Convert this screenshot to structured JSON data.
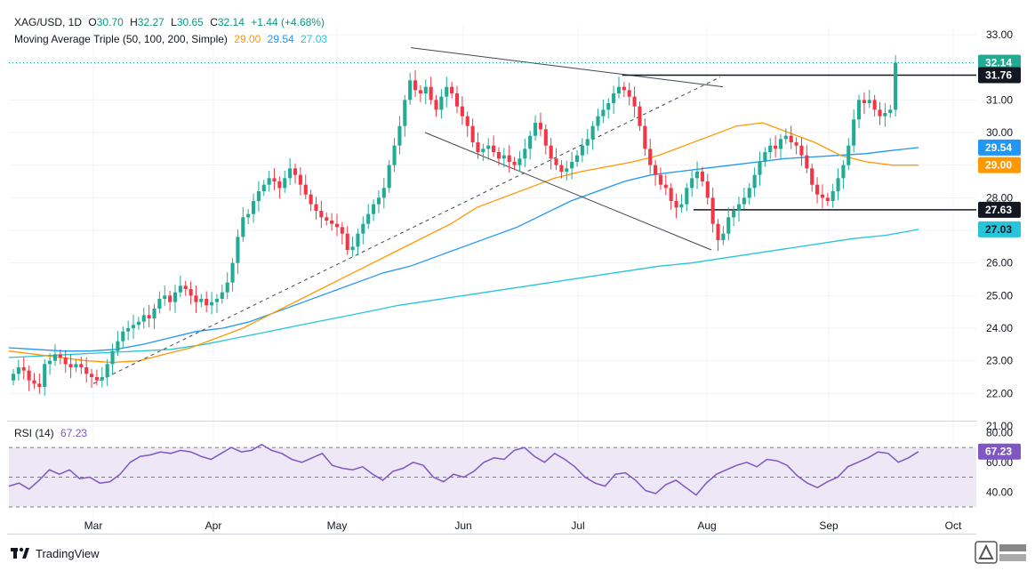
{
  "header": {
    "symbol": "XAG/USD, 1D",
    "open_label": "O",
    "open": "30.70",
    "high_label": "H",
    "high": "32.27",
    "low_label": "L",
    "low": "30.65",
    "close_label": "C",
    "close": "32.14",
    "change": "+1.44 (+4.68%)",
    "ma_title": "Moving Average Triple (50, 100, 200, Simple)",
    "ma50": "29.00",
    "ma100": "29.54",
    "ma200": "27.03"
  },
  "rsi": {
    "label": "RSI (14)",
    "value": "67.23",
    "ticks": [
      "80.00",
      "60.00",
      "40.00"
    ]
  },
  "colors": {
    "up": "#22ab94",
    "down": "#f23645",
    "ma50": "#ff9800",
    "ma100": "#2196f3",
    "ma200": "#26c6da",
    "rsi_line": "#7e57c2",
    "rsi_band": "#ede7f6",
    "price_line": "#22ab94",
    "label_dark": "#131722"
  },
  "price_axis": [
    "33.00",
    "32.00",
    "31.00",
    "30.00",
    "29.00",
    "28.00",
    "27.00",
    "26.00",
    "25.00",
    "24.00",
    "23.00",
    "22.00",
    "21.00"
  ],
  "axis_tags": [
    {
      "value": "32.14",
      "color": "#22ab94",
      "text_color": "#ffffff"
    },
    {
      "value": "31.76",
      "color": "#131722",
      "text_color": "#ffffff"
    },
    {
      "value": "29.54",
      "color": "#2196f3",
      "text_color": "#ffffff"
    },
    {
      "value": "29.00",
      "color": "#ff9800",
      "text_color": "#ffffff"
    },
    {
      "value": "27.63",
      "color": "#131722",
      "text_color": "#ffffff"
    },
    {
      "value": "27.03",
      "color": "#26c6da",
      "text_color": "#131722"
    },
    {
      "value": "67.23",
      "color": "#7e57c2",
      "text_color": "#ffffff"
    }
  ],
  "time_axis": [
    "Mar",
    "Apr",
    "May",
    "Jun",
    "Jul",
    "Aug",
    "Sep",
    "Oct"
  ],
  "footer": {
    "brand": "TradingView"
  },
  "chart_data": {
    "type": "candlestick",
    "title": "XAG/USD, 1D",
    "ylim": [
      21,
      33
    ],
    "series_close": [
      22.6,
      22.8,
      22.7,
      22.4,
      22.3,
      22.2,
      22.9,
      23.0,
      23.2,
      23.1,
      22.9,
      22.8,
      22.9,
      22.8,
      22.6,
      22.5,
      22.4,
      22.5,
      22.9,
      23.3,
      23.6,
      23.9,
      24.0,
      24.1,
      24.2,
      24.4,
      24.3,
      24.6,
      24.9,
      25.0,
      24.8,
      25.1,
      25.3,
      25.2,
      25.0,
      24.8,
      24.9,
      24.7,
      24.8,
      24.9,
      25.1,
      25.4,
      26.0,
      26.8,
      27.4,
      27.5,
      27.9,
      28.2,
      28.4,
      28.6,
      28.5,
      28.3,
      28.6,
      28.9,
      28.7,
      28.4,
      28.1,
      27.8,
      27.6,
      27.4,
      27.3,
      27.2,
      27.1,
      26.9,
      26.4,
      26.5,
      26.9,
      27.2,
      27.5,
      27.8,
      28.0,
      28.3,
      29.0,
      29.6,
      30.2,
      31.0,
      31.6,
      31.3,
      31.2,
      31.4,
      31.0,
      30.7,
      31.1,
      31.4,
      31.2,
      30.8,
      30.5,
      30.2,
      29.7,
      29.4,
      29.5,
      29.6,
      29.4,
      29.2,
      29.3,
      29.1,
      29.0,
      29.2,
      29.5,
      29.9,
      30.3,
      30.1,
      29.6,
      29.2,
      29.0,
      28.8,
      28.9,
      29.1,
      29.3,
      29.6,
      29.8,
      30.2,
      30.5,
      30.7,
      30.9,
      31.2,
      31.4,
      31.3,
      31.1,
      30.8,
      30.2,
      29.5,
      29.0,
      28.7,
      28.4,
      28.3,
      27.9,
      27.7,
      27.8,
      28.3,
      28.6,
      28.8,
      28.5,
      28.0,
      27.2,
      26.7,
      26.9,
      27.4,
      27.6,
      27.8,
      28.0,
      28.3,
      28.7,
      29.1,
      29.4,
      29.6,
      29.5,
      29.8,
      29.9,
      29.7,
      29.6,
      29.3,
      28.9,
      28.4,
      28.1,
      28.0,
      27.9,
      28.2,
      28.6,
      29.0,
      29.6,
      30.4,
      31.0,
      30.9,
      31.0,
      30.7,
      30.5,
      30.6,
      30.7,
      32.14
    ],
    "ma50": [
      23.3,
      23.2,
      23.1,
      23.0,
      22.95,
      23.0,
      23.2,
      23.4,
      23.7,
      24.0,
      24.4,
      24.8,
      25.2,
      25.6,
      26.0,
      26.4,
      26.8,
      27.2,
      27.7,
      28.0,
      28.3,
      28.6,
      28.8,
      28.95,
      29.1,
      29.3,
      29.6,
      29.9,
      30.2,
      30.3,
      30.0,
      29.7,
      29.3,
      29.1,
      29.0,
      29.0
    ],
    "ma100": [
      23.4,
      23.35,
      23.3,
      23.3,
      23.35,
      23.5,
      23.7,
      23.9,
      24.0,
      24.2,
      24.5,
      24.8,
      25.1,
      25.4,
      25.7,
      25.9,
      26.2,
      26.5,
      26.8,
      27.1,
      27.5,
      27.9,
      28.2,
      28.5,
      28.7,
      28.8,
      28.9,
      29.0,
      29.1,
      29.2,
      29.25,
      29.3,
      29.35,
      29.45,
      29.54
    ],
    "ma200": [
      23.1,
      23.15,
      23.2,
      23.25,
      23.3,
      23.35,
      23.5,
      23.7,
      23.9,
      24.1,
      24.3,
      24.5,
      24.7,
      24.85,
      25.0,
      25.15,
      25.3,
      25.45,
      25.6,
      25.75,
      25.9,
      26.0,
      26.15,
      26.3,
      26.45,
      26.6,
      26.75,
      26.85,
      27.03
    ],
    "trendlines": [
      {
        "name": "rising support (dashed)",
        "from": [
          "Mar",
          22.3
        ],
        "to": [
          "Jul",
          31.7
        ]
      },
      {
        "name": "upper channel",
        "from": [
          "May",
          32.6
        ],
        "to": [
          "Jul",
          31.4
        ]
      },
      {
        "name": "lower channel",
        "from": [
          "May",
          30.0
        ],
        "to": [
          "Aug",
          26.4
        ]
      },
      {
        "name": "resistance",
        "value": 31.76
      },
      {
        "name": "support",
        "value": 27.63
      }
    ],
    "rsi": [
      44,
      46,
      42,
      48,
      55,
      52,
      55,
      49,
      50,
      46,
      47,
      52,
      60,
      64,
      65,
      67,
      66,
      68,
      67,
      64,
      62,
      66,
      70,
      67,
      68,
      72,
      68,
      66,
      62,
      60,
      63,
      66,
      58,
      56,
      55,
      57,
      52,
      48,
      54,
      56,
      60,
      58,
      50,
      47,
      52,
      50,
      54,
      60,
      63,
      62,
      68,
      70,
      64,
      60,
      66,
      62,
      57,
      50,
      46,
      44,
      52,
      53,
      48,
      41,
      39,
      45,
      48,
      43,
      38,
      46,
      52,
      55,
      58,
      60,
      57,
      62,
      61,
      58,
      51,
      46,
      43,
      47,
      50,
      57,
      60,
      63,
      67,
      66,
      60,
      63,
      67.23
    ]
  }
}
